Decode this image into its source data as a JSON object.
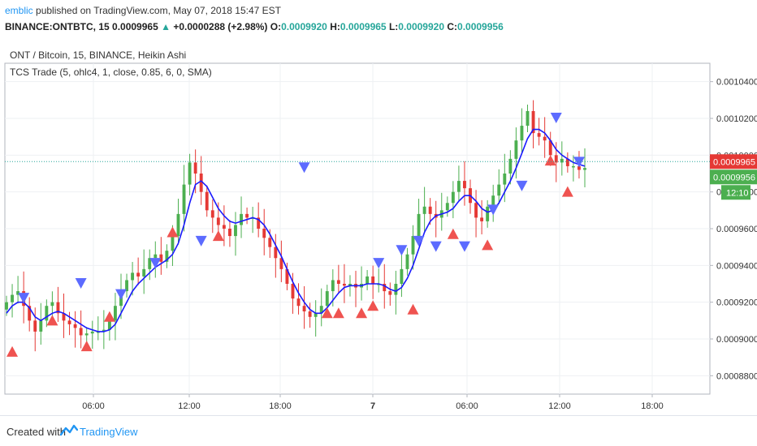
{
  "header": {
    "username": "emblic",
    "published": " published on TradingView.com, May 07, 2018 15:47 EST",
    "symbol": "BINANCE:ONTBTC, 15",
    "last": "0.0009965",
    "arrow": "▲",
    "change": "+0.0000288 (+2.98%)",
    "o_label": "O:",
    "o_value": "0.0009920",
    "h_label": "H:",
    "h_value": "0.0009965",
    "l_label": "L:",
    "l_value": "0.0009920",
    "c_label": "C:",
    "c_value": "0.0009956"
  },
  "legend": {
    "main": "ONT / Bitcoin, 15, BINANCE, Heikin Ashi",
    "indicator": "TCS Trade (5, ohlc4, 1, close, 0.85, 6, 0, SMA)"
  },
  "footer": {
    "created": "Created with",
    "brand": "TradingView"
  },
  "colors": {
    "up": "#4caf50",
    "down": "#e53935",
    "buy_triangle": "#ef5350",
    "sell_triangle": "#5c6bff",
    "ma_line": "#1a1aff",
    "price_line": "#26a69a"
  },
  "chart_data": {
    "type": "candlestick",
    "style": "Heikin Ashi",
    "ylim": [
      0.00087,
      0.00105
    ],
    "y_ticks": [
      "0.0010400",
      "0.0010200",
      "0.0010000",
      "0.0009800",
      "0.0009600",
      "0.0009400",
      "0.0009200",
      "0.0009000",
      "0.0008800"
    ],
    "x_ticks": [
      "06:00",
      "12:00",
      "18:00",
      "7",
      "06:00",
      "12:00",
      "18:00"
    ],
    "last_price_label": "0.0009965",
    "close_label": "0.0009956",
    "countdown_label": "12:10",
    "close_path": [
      0.00092,
      0.000924,
      0.000926,
      0.000918,
      0.00091,
      0.000904,
      0.00091,
      0.000918,
      0.00092,
      0.000914,
      0.00091,
      0.000908,
      0.000906,
      0.000902,
      0.000903,
      0.000904,
      0.000904,
      0.000905,
      0.00091,
      0.000918,
      0.000926,
      0.000932,
      0.000936,
      0.000934,
      0.000938,
      0.000944,
      0.000946,
      0.000942,
      0.000948,
      0.000956,
      0.000968,
      0.000984,
      0.000996,
      0.00099,
      0.00098,
      0.00097,
      0.000966,
      0.000962,
      0.00096,
      0.000956,
      0.000962,
      0.000968,
      0.000966,
      0.000966,
      0.00096,
      0.000955,
      0.00095,
      0.000944,
      0.000938,
      0.00093,
      0.000922,
      0.000918,
      0.000915,
      0.000912,
      0.000914,
      0.000918,
      0.000926,
      0.000932,
      0.00093,
      0.000929,
      0.00093,
      0.000928,
      0.00093,
      0.000934,
      0.00093,
      0.00093,
      0.000926,
      0.000924,
      0.00093,
      0.000938,
      0.000946,
      0.000956,
      0.000968,
      0.000972,
      0.000968,
      0.000966,
      0.00097,
      0.000974,
      0.00098,
      0.000986,
      0.000982,
      0.000974,
      0.000966,
      0.000964,
      0.000972,
      0.000978,
      0.000984,
      0.00099,
      0.000998,
      0.001008,
      0.001016,
      0.001024,
      0.001012,
      0.00101,
      0.001008,
      0.001,
      0.000996,
      0.000998,
      0.000994,
      0.000994,
      0.000992,
      0.000993
    ],
    "ma_path": [
      0.000914,
      0.000918,
      0.00092,
      0.00092,
      0.000917,
      0.000912,
      0.00091,
      0.000912,
      0.000914,
      0.000915,
      0.000914,
      0.000912,
      0.00091,
      0.000908,
      0.000906,
      0.000905,
      0.000904,
      0.000904,
      0.000905,
      0.000908,
      0.000914,
      0.00092,
      0.000926,
      0.00093,
      0.000933,
      0.000936,
      0.000939,
      0.000941,
      0.000943,
      0.000946,
      0.000952,
      0.000962,
      0.000974,
      0.000984,
      0.000986,
      0.000983,
      0.000977,
      0.000971,
      0.000967,
      0.000964,
      0.000963,
      0.000964,
      0.000965,
      0.000966,
      0.000965,
      0.000962,
      0.000957,
      0.000951,
      0.000945,
      0.000938,
      0.000931,
      0.000925,
      0.00092,
      0.000916,
      0.000914,
      0.000914,
      0.000917,
      0.000921,
      0.000925,
      0.000928,
      0.000929,
      0.000929,
      0.000929,
      0.00093,
      0.00093,
      0.00093,
      0.000929,
      0.000927,
      0.000926,
      0.000928,
      0.000933,
      0.00094,
      0.000949,
      0.000958,
      0.000964,
      0.000967,
      0.000968,
      0.000969,
      0.000971,
      0.000975,
      0.000978,
      0.000978,
      0.000975,
      0.000971,
      0.000969,
      0.00097,
      0.000974,
      0.00098,
      0.000986,
      0.000993,
      0.001001,
      0.001009,
      0.001014,
      0.001014,
      0.001012,
      0.001008,
      0.001003,
      0.001,
      0.000998,
      0.000996,
      0.000995,
      0.000994
    ],
    "sell_signals": [
      0.000922,
      0.00093,
      0.000924,
      0.000941,
      0.000953,
      0.000993,
      0.000941,
      0.000948,
      0.000953,
      0.00095,
      0.00095,
      0.00097,
      0.000983,
      0.00102,
      0.000996
    ],
    "buy_signals": [
      0.000893,
      0.00091,
      0.000896,
      0.000912,
      0.000958,
      0.000956,
      0.000914,
      0.000914,
      0.000914,
      0.000918,
      0.000916,
      0.000957,
      0.000951,
      0.000997,
      0.00098
    ]
  }
}
